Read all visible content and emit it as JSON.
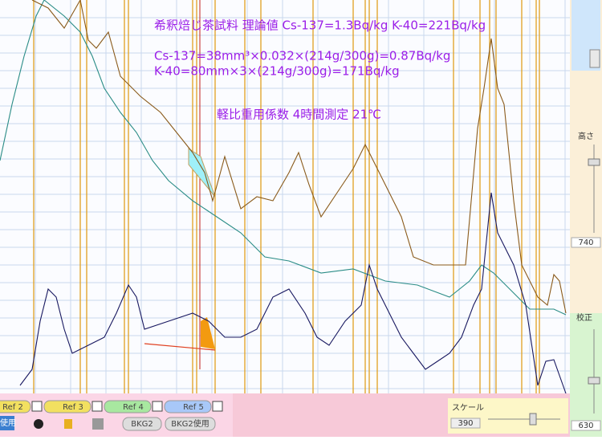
{
  "overlay": {
    "lines": [
      "希釈焙じ茶試料 理論値 Cs-137=1.3Bq/kg K-40=221Bq/kg",
      "Cs-137=38mm³×0.032×(214g/300g)=0.87Bq/kg",
      "K-40=80mm×3×(214g/300g)=171Bq/kg",
      "軽比重用係数 4時間測定 21℃"
    ]
  },
  "side_panel": {
    "height_label": "高さ",
    "height_value": "740",
    "calib_label": "校正",
    "calib_value": "630"
  },
  "bottom_bar": {
    "refs": [
      "Ref 2",
      "Ref 3",
      "Ref 4",
      "Ref 5"
    ],
    "use_left": "使用",
    "bkg2": "BKG2",
    "bkg2_use": "BKG2使用",
    "scale_label": "スケール",
    "scale_value": "390"
  }
}
